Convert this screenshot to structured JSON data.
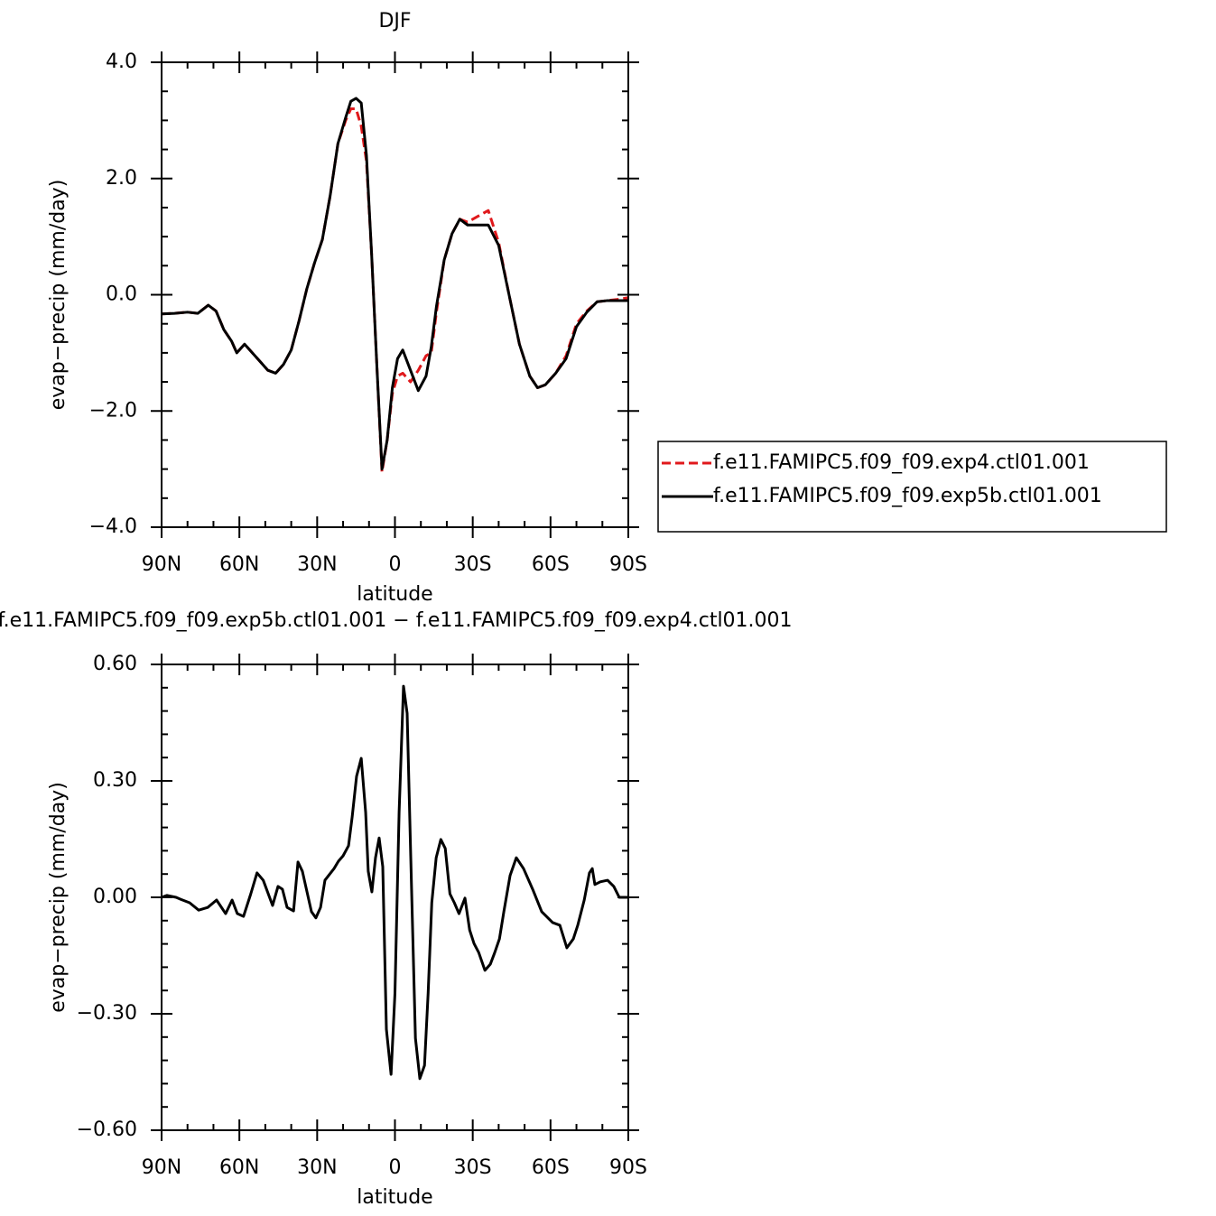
{
  "chart_data": [
    {
      "type": "line",
      "title": "DJF",
      "xlabel": "latitude",
      "ylabel": "evap−precip (mm/day)",
      "xlim": [
        90,
        -90
      ],
      "xticks": [
        {
          "value": 90,
          "label": "90N"
        },
        {
          "value": 60,
          "label": "60N"
        },
        {
          "value": 30,
          "label": "30N"
        },
        0,
        {
          "value": -30,
          "label": "30S"
        },
        {
          "value": -60,
          "label": "60S"
        },
        {
          "value": -90,
          "label": "90S"
        }
      ],
      "ylim": [
        -4,
        4
      ],
      "yticks": [
        {
          "value": 4,
          "label": "4.0"
        },
        {
          "value": 2,
          "label": "2.0"
        },
        {
          "value": 0,
          "label": "0.0"
        },
        {
          "value": -2,
          "label": "−2.0"
        },
        {
          "value": -4,
          "label": "−4.0"
        }
      ],
      "grid": false,
      "legend": "right",
      "x": [
        90,
        85,
        80,
        76,
        72,
        69,
        66,
        63,
        61,
        58,
        55,
        52,
        49,
        46,
        43,
        40,
        37,
        34,
        31,
        28,
        25,
        22,
        19,
        17,
        15,
        13,
        11,
        9,
        7,
        5,
        3,
        1,
        -1,
        -3,
        -6,
        -9,
        -12,
        -14,
        -16,
        -19,
        -22,
        -25,
        -28,
        -32,
        -36,
        -40,
        -44,
        -48,
        -52,
        -55,
        -58,
        -62,
        -66,
        -70,
        -74,
        -78,
        -82,
        -86,
        -90
      ],
      "series": [
        {
          "name": "f.e11.FAMIPC5.f09_f09.exp4.ctl01.001",
          "color": "#e0191c",
          "dashed": true,
          "values": [
            -0.33,
            -0.32,
            -0.3,
            -0.32,
            -0.18,
            -0.28,
            -0.6,
            -0.8,
            -1.0,
            -0.85,
            -1.0,
            -1.15,
            -1.3,
            -1.35,
            -1.2,
            -0.95,
            -0.45,
            0.1,
            0.55,
            0.95,
            1.7,
            2.6,
            3.0,
            3.2,
            3.2,
            2.9,
            2.3,
            0.7,
            -1.2,
            -3.05,
            -2.5,
            -1.7,
            -1.4,
            -1.35,
            -1.5,
            -1.3,
            -1.05,
            -1.0,
            -0.3,
            0.6,
            1.05,
            1.3,
            1.25,
            1.35,
            1.45,
            0.9,
            0.0,
            -0.85,
            -1.4,
            -1.6,
            -1.55,
            -1.35,
            -1.05,
            -0.5,
            -0.28,
            -0.12,
            -0.1,
            -0.08,
            -0.05
          ]
        },
        {
          "name": "f.e11.FAMIPC5.f09_f09.exp5b.ctl01.001",
          "color": "#000000",
          "dashed": false,
          "values": [
            -0.33,
            -0.32,
            -0.3,
            -0.32,
            -0.18,
            -0.28,
            -0.6,
            -0.8,
            -1.0,
            -0.85,
            -1.0,
            -1.15,
            -1.3,
            -1.35,
            -1.2,
            -0.95,
            -0.45,
            0.1,
            0.55,
            0.95,
            1.7,
            2.6,
            3.05,
            3.33,
            3.38,
            3.3,
            2.4,
            0.7,
            -1.2,
            -3.0,
            -2.5,
            -1.6,
            -1.1,
            -0.95,
            -1.3,
            -1.65,
            -1.4,
            -0.9,
            -0.2,
            0.6,
            1.05,
            1.3,
            1.2,
            1.2,
            1.2,
            0.85,
            0.0,
            -0.85,
            -1.4,
            -1.6,
            -1.55,
            -1.35,
            -1.1,
            -0.55,
            -0.3,
            -0.12,
            -0.1,
            -0.1,
            -0.1
          ]
        }
      ]
    },
    {
      "type": "line",
      "title": "f.e11.FAMIPC5.f09_f09.exp5b.ctl01.001 − f.e11.FAMIPC5.f09_f09.exp4.ctl01.001",
      "xlabel": "latitude",
      "ylabel": "evap−precip (mm/day)",
      "xlim": [
        90,
        -90
      ],
      "xticks": [
        {
          "value": 90,
          "label": "90N"
        },
        {
          "value": 60,
          "label": "60N"
        },
        {
          "value": 30,
          "label": "30N"
        },
        0,
        {
          "value": -30,
          "label": "30S"
        },
        {
          "value": -60,
          "label": "60S"
        },
        {
          "value": -90,
          "label": "90S"
        }
      ],
      "ylim": [
        -0.6,
        0.6
      ],
      "yticks": [
        {
          "value": 0.6,
          "label": "0.60"
        },
        {
          "value": 0.3,
          "label": "0.30"
        },
        {
          "value": 0,
          "label": "0.00"
        },
        {
          "value": -0.3,
          "label": "−0.30"
        },
        {
          "value": -0.6,
          "label": "−0.60"
        }
      ],
      "grid": false,
      "x": [
        90,
        88,
        84.4,
        82.7,
        79.2,
        75.7,
        72.2,
        68.8,
        65.3,
        62.8,
        60.8,
        58.4,
        55.6,
        53.2,
        50.8,
        47.2,
        45.1,
        43.4,
        41.6,
        39.1,
        37.4,
        35.7,
        32.2,
        30.5,
        28.7,
        27,
        23.5,
        21.8,
        20,
        17.9,
        16.5,
        14.8,
        13,
        11.3,
        10.3,
        8.9,
        7.5,
        6.1,
        4.7,
        3.3,
        1.5,
        0,
        -1.6,
        -3.3,
        -4.7,
        -6.1,
        -7.9,
        -9.6,
        -11.4,
        -12.8,
        -14.2,
        -15.9,
        -17.7,
        -19.4,
        -21.2,
        -22.9,
        -24.7,
        -27,
        -28.8,
        -30.5,
        -32.3,
        -34.7,
        -36.8,
        -38.5,
        -40.3,
        -42,
        -44.4,
        -46.8,
        -49.6,
        -53.1,
        -56.6,
        -60.8,
        -63.6,
        -66.3,
        -68.8,
        -70.5,
        -73,
        -75,
        -76.1,
        -77.1,
        -79.2,
        -82,
        -84.4,
        -86.5,
        -90
      ],
      "series": [
        {
          "name": "difference",
          "color": "#000000",
          "dashed": false,
          "values": [
            0,
            0.005,
            0,
            -0.005,
            -0.014,
            -0.033,
            -0.026,
            -0.007,
            -0.042,
            -0.007,
            -0.042,
            -0.049,
            0.009,
            0.063,
            0.044,
            -0.021,
            0.028,
            0.021,
            -0.026,
            -0.035,
            0.091,
            0.067,
            -0.037,
            -0.053,
            -0.026,
            0.044,
            0.074,
            0.093,
            0.107,
            0.133,
            0.207,
            0.312,
            0.358,
            0.219,
            0.067,
            0.014,
            0.102,
            0.153,
            0.079,
            -0.34,
            -0.456,
            -0.247,
            0.219,
            0.544,
            0.474,
            0.102,
            -0.363,
            -0.467,
            -0.433,
            -0.247,
            -0.014,
            0.102,
            0.149,
            0.126,
            0.009,
            -0.014,
            -0.042,
            -0.002,
            -0.084,
            -0.119,
            -0.142,
            -0.188,
            -0.172,
            -0.142,
            -0.107,
            -0.037,
            0.056,
            0.102,
            0.074,
            0.021,
            -0.037,
            -0.065,
            -0.072,
            -0.13,
            -0.107,
            -0.072,
            -0.007,
            0.063,
            0.074,
            0.033,
            0.04,
            0.044,
            0.028,
            0,
            0
          ]
        }
      ]
    }
  ]
}
